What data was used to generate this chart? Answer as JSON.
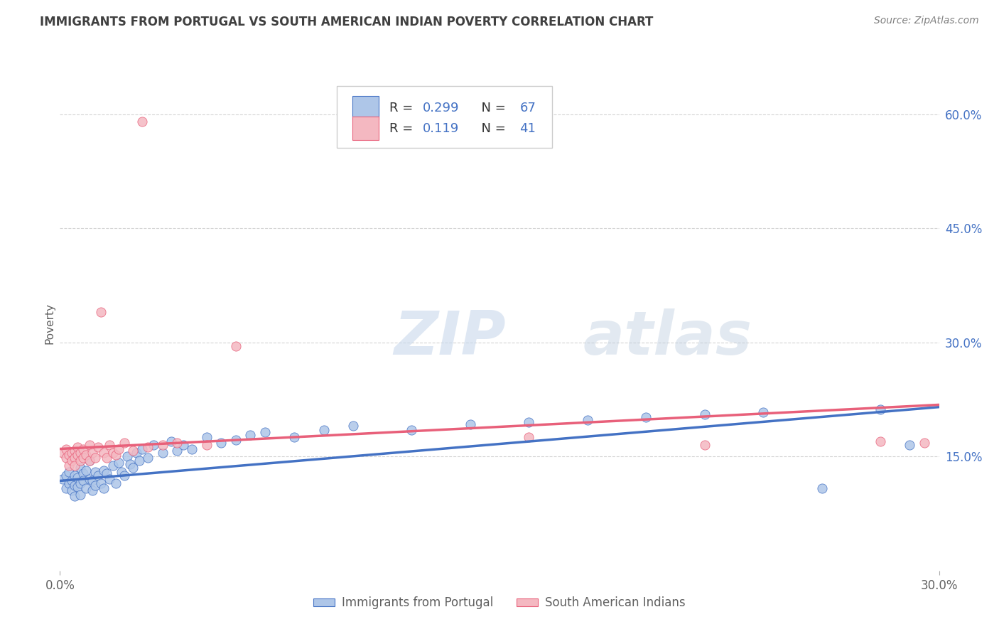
{
  "title": "IMMIGRANTS FROM PORTUGAL VS SOUTH AMERICAN INDIAN POVERTY CORRELATION CHART",
  "source": "Source: ZipAtlas.com",
  "ylabel": "Poverty",
  "xlim": [
    0.0,
    0.3
  ],
  "ylim": [
    0.0,
    0.65
  ],
  "x_ticks": [
    0.0,
    0.3
  ],
  "x_tick_labels": [
    "0.0%",
    "30.0%"
  ],
  "y_ticks_right": [
    0.15,
    0.3,
    0.45,
    0.6
  ],
  "y_tick_labels_right": [
    "15.0%",
    "30.0%",
    "45.0%",
    "60.0%"
  ],
  "watermark_zip": "ZIP",
  "watermark_atlas": "atlas",
  "legend_r1_label": "R = ",
  "legend_r1_val": "0.299",
  "legend_n1_label": "  N = ",
  "legend_n1_val": "67",
  "legend_r2_label": "R =  ",
  "legend_r2_val": "0.119",
  "legend_n2_label": "  N = ",
  "legend_n2_val": "41",
  "legend_bottom": [
    "Immigrants from Portugal",
    "South American Indians"
  ],
  "blue_scatter": [
    [
      0.001,
      0.12
    ],
    [
      0.002,
      0.125
    ],
    [
      0.002,
      0.108
    ],
    [
      0.003,
      0.13
    ],
    [
      0.003,
      0.115
    ],
    [
      0.004,
      0.118
    ],
    [
      0.004,
      0.105
    ],
    [
      0.005,
      0.125
    ],
    [
      0.005,
      0.112
    ],
    [
      0.005,
      0.098
    ],
    [
      0.006,
      0.122
    ],
    [
      0.006,
      0.11
    ],
    [
      0.007,
      0.135
    ],
    [
      0.007,
      0.115
    ],
    [
      0.007,
      0.1
    ],
    [
      0.008,
      0.128
    ],
    [
      0.008,
      0.118
    ],
    [
      0.009,
      0.132
    ],
    [
      0.009,
      0.108
    ],
    [
      0.01,
      0.12
    ],
    [
      0.01,
      0.145
    ],
    [
      0.011,
      0.118
    ],
    [
      0.011,
      0.105
    ],
    [
      0.012,
      0.13
    ],
    [
      0.012,
      0.112
    ],
    [
      0.013,
      0.125
    ],
    [
      0.014,
      0.115
    ],
    [
      0.015,
      0.132
    ],
    [
      0.015,
      0.108
    ],
    [
      0.016,
      0.128
    ],
    [
      0.017,
      0.12
    ],
    [
      0.018,
      0.138
    ],
    [
      0.019,
      0.115
    ],
    [
      0.02,
      0.142
    ],
    [
      0.021,
      0.13
    ],
    [
      0.022,
      0.125
    ],
    [
      0.023,
      0.15
    ],
    [
      0.024,
      0.14
    ],
    [
      0.025,
      0.135
    ],
    [
      0.026,
      0.155
    ],
    [
      0.027,
      0.145
    ],
    [
      0.028,
      0.16
    ],
    [
      0.03,
      0.148
    ],
    [
      0.032,
      0.165
    ],
    [
      0.035,
      0.155
    ],
    [
      0.038,
      0.17
    ],
    [
      0.04,
      0.158
    ],
    [
      0.042,
      0.165
    ],
    [
      0.045,
      0.16
    ],
    [
      0.05,
      0.175
    ],
    [
      0.055,
      0.168
    ],
    [
      0.06,
      0.172
    ],
    [
      0.065,
      0.178
    ],
    [
      0.07,
      0.182
    ],
    [
      0.08,
      0.175
    ],
    [
      0.09,
      0.185
    ],
    [
      0.1,
      0.19
    ],
    [
      0.12,
      0.185
    ],
    [
      0.14,
      0.192
    ],
    [
      0.16,
      0.195
    ],
    [
      0.18,
      0.198
    ],
    [
      0.2,
      0.202
    ],
    [
      0.22,
      0.205
    ],
    [
      0.24,
      0.208
    ],
    [
      0.26,
      0.108
    ],
    [
      0.28,
      0.212
    ],
    [
      0.29,
      0.165
    ]
  ],
  "pink_scatter": [
    [
      0.001,
      0.155
    ],
    [
      0.002,
      0.148
    ],
    [
      0.002,
      0.16
    ],
    [
      0.003,
      0.152
    ],
    [
      0.003,
      0.138
    ],
    [
      0.004,
      0.155
    ],
    [
      0.004,
      0.145
    ],
    [
      0.005,
      0.158
    ],
    [
      0.005,
      0.148
    ],
    [
      0.005,
      0.138
    ],
    [
      0.006,
      0.162
    ],
    [
      0.006,
      0.152
    ],
    [
      0.007,
      0.155
    ],
    [
      0.007,
      0.145
    ],
    [
      0.008,
      0.16
    ],
    [
      0.008,
      0.148
    ],
    [
      0.009,
      0.152
    ],
    [
      0.01,
      0.165
    ],
    [
      0.01,
      0.145
    ],
    [
      0.011,
      0.155
    ],
    [
      0.012,
      0.148
    ],
    [
      0.013,
      0.162
    ],
    [
      0.014,
      0.34
    ],
    [
      0.015,
      0.155
    ],
    [
      0.016,
      0.148
    ],
    [
      0.017,
      0.165
    ],
    [
      0.018,
      0.155
    ],
    [
      0.019,
      0.152
    ],
    [
      0.02,
      0.16
    ],
    [
      0.022,
      0.168
    ],
    [
      0.025,
      0.158
    ],
    [
      0.028,
      0.59
    ],
    [
      0.03,
      0.162
    ],
    [
      0.035,
      0.165
    ],
    [
      0.04,
      0.168
    ],
    [
      0.05,
      0.165
    ],
    [
      0.06,
      0.295
    ],
    [
      0.16,
      0.175
    ],
    [
      0.22,
      0.165
    ],
    [
      0.28,
      0.17
    ],
    [
      0.295,
      0.168
    ]
  ],
  "blue_line": [
    [
      0.0,
      0.118
    ],
    [
      0.3,
      0.215
    ]
  ],
  "pink_line": [
    [
      0.0,
      0.16
    ],
    [
      0.3,
      0.218
    ]
  ],
  "blue_color": "#4472c4",
  "pink_color": "#e8607a",
  "blue_scatter_color": "#aec6e8",
  "pink_scatter_color": "#f4b8c1",
  "grid_color": "#d0d0d0",
  "background_color": "#ffffff",
  "title_color": "#404040",
  "source_color": "#808080",
  "tick_label_color": "#606060",
  "right_tick_color": "#4472c4"
}
